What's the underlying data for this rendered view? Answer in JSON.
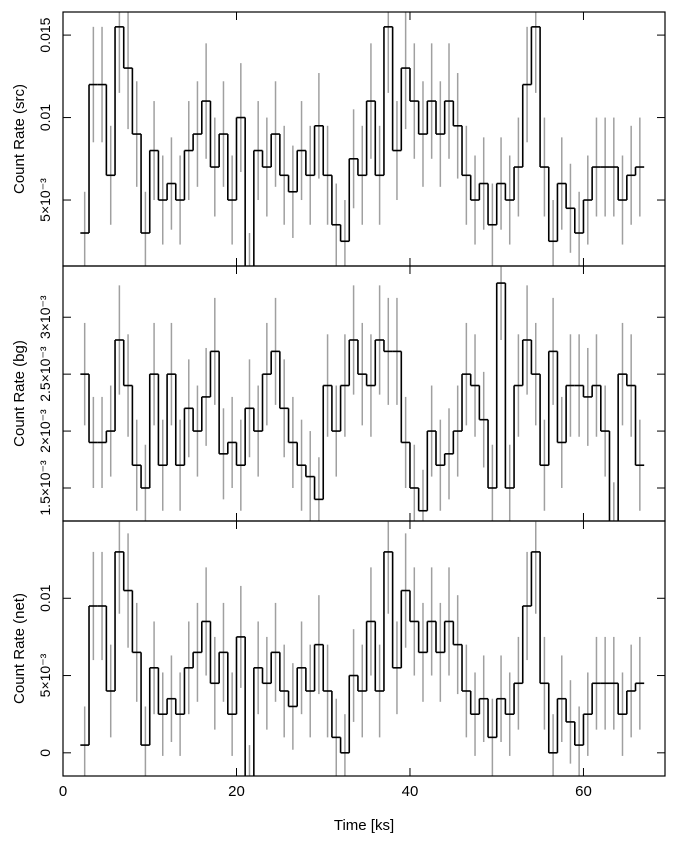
{
  "chart_data": [
    {
      "type": "step",
      "ylabel": "Count Rate (src)",
      "xlim": [
        0,
        69.4
      ],
      "ylim": [
        0.001,
        0.0164
      ],
      "yticks": [
        {
          "value": 0.005,
          "label": "5×10⁻³"
        },
        0.01,
        0.015
      ],
      "line_color": "#000000",
      "error_color": "#a0a0a0",
      "x": [
        2.5,
        3.5,
        4.5,
        5.5,
        6.5,
        7.5,
        8.5,
        9.5,
        10.5,
        11.5,
        12.5,
        13.5,
        14.5,
        15.5,
        16.5,
        17.5,
        18.5,
        19.5,
        20.5,
        21.5,
        22.5,
        23.5,
        24.5,
        25.5,
        26.5,
        27.5,
        28.5,
        29.5,
        30.5,
        31.5,
        32.5,
        33.5,
        34.5,
        35.5,
        36.5,
        37.5,
        38.5,
        39.5,
        40.5,
        41.5,
        42.5,
        43.5,
        44.5,
        45.5,
        46.5,
        47.5,
        48.5,
        49.5,
        50.5,
        51.5,
        52.5,
        53.5,
        54.5,
        55.5,
        56.5,
        57.5,
        58.5,
        59.5,
        60.5,
        61.5,
        62.5,
        63.5,
        64.5,
        65.5,
        66.5
      ],
      "values": [
        0.003,
        0.012,
        0.012,
        0.0065,
        0.0155,
        0.013,
        0.009,
        0.003,
        0.008,
        0.005,
        0.006,
        0.005,
        0.008,
        0.009,
        0.011,
        0.007,
        0.009,
        0.005,
        0.01,
        0.0005,
        0.008,
        0.007,
        0.009,
        0.0065,
        0.0055,
        0.008,
        0.0065,
        0.0095,
        0.0065,
        0.0035,
        0.0025,
        0.0075,
        0.0065,
        0.011,
        0.0065,
        0.0155,
        0.008,
        0.013,
        0.011,
        0.009,
        0.011,
        0.009,
        0.011,
        0.0095,
        0.0065,
        0.005,
        0.006,
        0.0035,
        0.006,
        0.005,
        0.007,
        0.012,
        0.0155,
        0.007,
        0.0025,
        0.006,
        0.0045,
        0.003,
        0.005,
        0.007,
        0.007,
        0.007,
        0.005,
        0.0065,
        0.007
      ],
      "errors": [
        0.0025,
        0.0035,
        0.0035,
        0.003,
        0.004,
        0.0037,
        0.0032,
        0.0025,
        0.003,
        0.0027,
        0.0028,
        0.0027,
        0.003,
        0.0032,
        0.0035,
        0.003,
        0.0032,
        0.0027,
        0.0033,
        0.0025,
        0.003,
        0.003,
        0.0032,
        0.003,
        0.0028,
        0.003,
        0.003,
        0.0032,
        0.003,
        0.0025,
        0.0025,
        0.003,
        0.003,
        0.0035,
        0.003,
        0.004,
        0.003,
        0.0037,
        0.0035,
        0.0032,
        0.0035,
        0.0032,
        0.0035,
        0.0032,
        0.003,
        0.0027,
        0.0028,
        0.0025,
        0.0028,
        0.0027,
        0.003,
        0.0035,
        0.004,
        0.003,
        0.0025,
        0.0028,
        0.0027,
        0.0025,
        0.0027,
        0.003,
        0.003,
        0.003,
        0.0027,
        0.003,
        0.003
      ]
    },
    {
      "type": "step",
      "ylabel": "Count Rate (bg)",
      "xlim": [
        0,
        69.4
      ],
      "ylim": [
        0.00121,
        0.00345
      ],
      "yticks": [
        {
          "value": 0.0015,
          "label": "1.5×10⁻³"
        },
        {
          "value": 0.002,
          "label": "2×10⁻³"
        },
        {
          "value": 0.0025,
          "label": "2.5×10⁻³"
        },
        {
          "value": 0.003,
          "label": "3×10⁻³"
        }
      ],
      "line_color": "#000000",
      "error_color": "#a0a0a0",
      "x": [
        2.5,
        3.5,
        4.5,
        5.5,
        6.5,
        7.5,
        8.5,
        9.5,
        10.5,
        11.5,
        12.5,
        13.5,
        14.5,
        15.5,
        16.5,
        17.5,
        18.5,
        19.5,
        20.5,
        21.5,
        22.5,
        23.5,
        24.5,
        25.5,
        26.5,
        27.5,
        28.5,
        29.5,
        30.5,
        31.5,
        32.5,
        33.5,
        34.5,
        35.5,
        36.5,
        37.5,
        38.5,
        39.5,
        40.5,
        41.5,
        42.5,
        43.5,
        44.5,
        45.5,
        46.5,
        47.5,
        48.5,
        49.5,
        50.5,
        51.5,
        52.5,
        53.5,
        54.5,
        55.5,
        56.5,
        57.5,
        58.5,
        59.5,
        60.5,
        61.5,
        62.5,
        63.5,
        64.5,
        65.5,
        66.5
      ],
      "values": [
        0.0025,
        0.0019,
        0.0019,
        0.002,
        0.0028,
        0.0024,
        0.0017,
        0.0015,
        0.0025,
        0.0017,
        0.0025,
        0.0017,
        0.0022,
        0.002,
        0.0023,
        0.0027,
        0.0018,
        0.0019,
        0.0017,
        0.0022,
        0.002,
        0.0025,
        0.0027,
        0.0022,
        0.0019,
        0.0017,
        0.0016,
        0.0014,
        0.0024,
        0.002,
        0.0024,
        0.0028,
        0.0025,
        0.0024,
        0.0028,
        0.0027,
        0.0027,
        0.0019,
        0.0015,
        0.0013,
        0.002,
        0.0017,
        0.0018,
        0.002,
        0.0025,
        0.0024,
        0.0021,
        0.0015,
        0.0033,
        0.0015,
        0.0024,
        0.0028,
        0.0025,
        0.0017,
        0.0027,
        0.0019,
        0.0024,
        0.0024,
        0.0023,
        0.0024,
        0.002,
        0.0012,
        0.0025,
        0.0024,
        0.0017
      ],
      "errors": [
        0.00045,
        0.0004,
        0.0004,
        0.0004,
        0.00048,
        0.00045,
        0.0004,
        0.00038,
        0.00045,
        0.0004,
        0.00045,
        0.0004,
        0.00043,
        0.0004,
        0.00043,
        0.00047,
        0.0004,
        0.0004,
        0.0004,
        0.00043,
        0.0004,
        0.00045,
        0.00047,
        0.00043,
        0.0004,
        0.0004,
        0.0004,
        0.00037,
        0.00045,
        0.0004,
        0.00045,
        0.00048,
        0.00045,
        0.00045,
        0.00048,
        0.00047,
        0.00047,
        0.0004,
        0.00038,
        0.00036,
        0.0004,
        0.0004,
        0.0004,
        0.0004,
        0.00045,
        0.00045,
        0.00042,
        0.00038,
        0.0005,
        0.00038,
        0.00045,
        0.00048,
        0.00045,
        0.0004,
        0.00047,
        0.0004,
        0.00045,
        0.00045,
        0.00043,
        0.00045,
        0.0004,
        0.00035,
        0.00045,
        0.00045,
        0.0004
      ]
    },
    {
      "type": "step",
      "ylabel": "Count Rate (net)",
      "xlabel": "Time [ks]",
      "xlim": [
        0,
        69.4
      ],
      "xticks": [
        0,
        20,
        40,
        60
      ],
      "ylim": [
        -0.0015,
        0.015
      ],
      "yticks": [
        0,
        {
          "value": 0.005,
          "label": "5×10⁻³"
        },
        0.01
      ],
      "line_color": "#000000",
      "error_color": "#a0a0a0",
      "x": [
        2.5,
        3.5,
        4.5,
        5.5,
        6.5,
        7.5,
        8.5,
        9.5,
        10.5,
        11.5,
        12.5,
        13.5,
        14.5,
        15.5,
        16.5,
        17.5,
        18.5,
        19.5,
        20.5,
        21.5,
        22.5,
        23.5,
        24.5,
        25.5,
        26.5,
        27.5,
        28.5,
        29.5,
        30.5,
        31.5,
        32.5,
        33.5,
        34.5,
        35.5,
        36.5,
        37.5,
        38.5,
        39.5,
        40.5,
        41.5,
        42.5,
        43.5,
        44.5,
        45.5,
        46.5,
        47.5,
        48.5,
        49.5,
        50.5,
        51.5,
        52.5,
        53.5,
        54.5,
        55.5,
        56.5,
        57.5,
        58.5,
        59.5,
        60.5,
        61.5,
        62.5,
        63.5,
        64.5,
        65.5,
        66.5
      ],
      "values": [
        0.0005,
        0.0095,
        0.0095,
        0.004,
        0.013,
        0.0105,
        0.0065,
        0.0005,
        0.0055,
        0.0025,
        0.0035,
        0.0025,
        0.0055,
        0.0065,
        0.0085,
        0.0045,
        0.0065,
        0.0025,
        0.0075,
        -0.002,
        0.0055,
        0.0045,
        0.0065,
        0.004,
        0.003,
        0.0055,
        0.004,
        0.007,
        0.004,
        0.001,
        0,
        0.005,
        0.004,
        0.0085,
        0.004,
        0.013,
        0.0055,
        0.0105,
        0.0085,
        0.0065,
        0.0085,
        0.0065,
        0.0085,
        0.007,
        0.004,
        0.0025,
        0.0035,
        0.001,
        0.0035,
        0.0025,
        0.0045,
        0.0095,
        0.013,
        0.0045,
        0,
        0.0035,
        0.002,
        0.0005,
        0.0025,
        0.0045,
        0.0045,
        0.0045,
        0.0025,
        0.004,
        0.0045
      ],
      "errors": [
        0.0025,
        0.0035,
        0.0035,
        0.003,
        0.004,
        0.0037,
        0.0032,
        0.0025,
        0.003,
        0.0027,
        0.0028,
        0.0027,
        0.003,
        0.0032,
        0.0035,
        0.003,
        0.0032,
        0.0027,
        0.0033,
        0.0025,
        0.003,
        0.003,
        0.0032,
        0.003,
        0.0028,
        0.003,
        0.003,
        0.0032,
        0.003,
        0.0025,
        0.0025,
        0.003,
        0.003,
        0.0035,
        0.003,
        0.004,
        0.003,
        0.0037,
        0.0035,
        0.0032,
        0.0035,
        0.0032,
        0.0035,
        0.0032,
        0.003,
        0.0027,
        0.0028,
        0.0025,
        0.0028,
        0.0027,
        0.003,
        0.0035,
        0.004,
        0.003,
        0.0025,
        0.0028,
        0.0027,
        0.0025,
        0.0027,
        0.003,
        0.003,
        0.003,
        0.0027,
        0.003,
        0.003
      ]
    }
  ]
}
